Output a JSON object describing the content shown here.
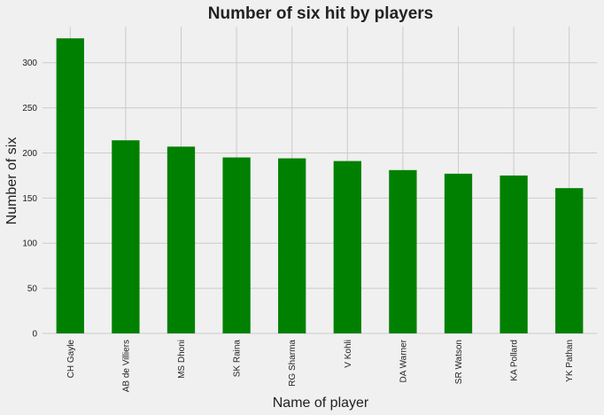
{
  "chart_data": {
    "type": "bar",
    "title": "Number of six hit by players",
    "xlabel": "Name of player",
    "ylabel": "Number of six",
    "categories": [
      "CH Gayle",
      "AB de Villiers",
      "MS Dhoni",
      "SK Raina",
      "RG Sharma",
      "V Kohli",
      "DA Warner",
      "SR Watson",
      "KA Pollard",
      "YK Pathan"
    ],
    "values": [
      327,
      214,
      207,
      195,
      194,
      191,
      181,
      177,
      175,
      161
    ],
    "ylim": [
      0,
      340
    ],
    "yticks": [
      0,
      50,
      100,
      150,
      200,
      250,
      300
    ],
    "grid": true,
    "legend": "none",
    "bar_color": "#008000",
    "background_color": "#f0f0f0",
    "grid_color": "#cbcbcb"
  }
}
